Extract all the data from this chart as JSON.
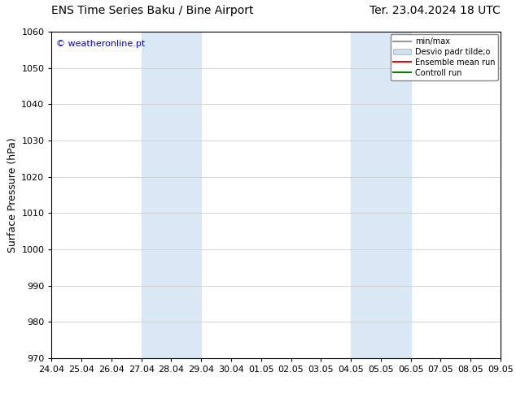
{
  "title_left": "ENS Time Series Baku / Bine Airport",
  "title_right": "Ter. 23.04.2024 18 UTC",
  "ylabel": "Surface Pressure (hPa)",
  "ylim": [
    970,
    1060
  ],
  "yticks": [
    970,
    980,
    990,
    1000,
    1010,
    1020,
    1030,
    1040,
    1050,
    1060
  ],
  "x_labels": [
    "24.04",
    "25.04",
    "26.04",
    "27.04",
    "28.04",
    "29.04",
    "30.04",
    "01.05",
    "02.05",
    "03.05",
    "04.05",
    "05.05",
    "06.05",
    "07.05",
    "08.05",
    "09.05"
  ],
  "shaded_bands": [
    {
      "x_start": "27.04",
      "x_end": "29.04"
    },
    {
      "x_start": "04.05",
      "x_end": "06.05"
    }
  ],
  "shade_color": "#dae8f5",
  "copyright_text": "© weatheronline.pt",
  "copyright_color": "#0000cc",
  "legend_entries": [
    {
      "label": "min/max",
      "color": "#999999",
      "lw": 1.5,
      "style": "solid",
      "type": "line"
    },
    {
      "label": "Desvio padr tilde;o",
      "color": "#cce0f0",
      "lw": 8,
      "style": "solid",
      "type": "patch"
    },
    {
      "label": "Ensemble mean run",
      "color": "red",
      "lw": 1.5,
      "style": "solid",
      "type": "line"
    },
    {
      "label": "Controll run",
      "color": "green",
      "lw": 1.5,
      "style": "solid",
      "type": "line"
    }
  ],
  "grid_color": "#cccccc",
  "bg_color": "#ffffff",
  "title_fontsize": 10,
  "tick_fontsize": 8,
  "ylabel_fontsize": 9
}
